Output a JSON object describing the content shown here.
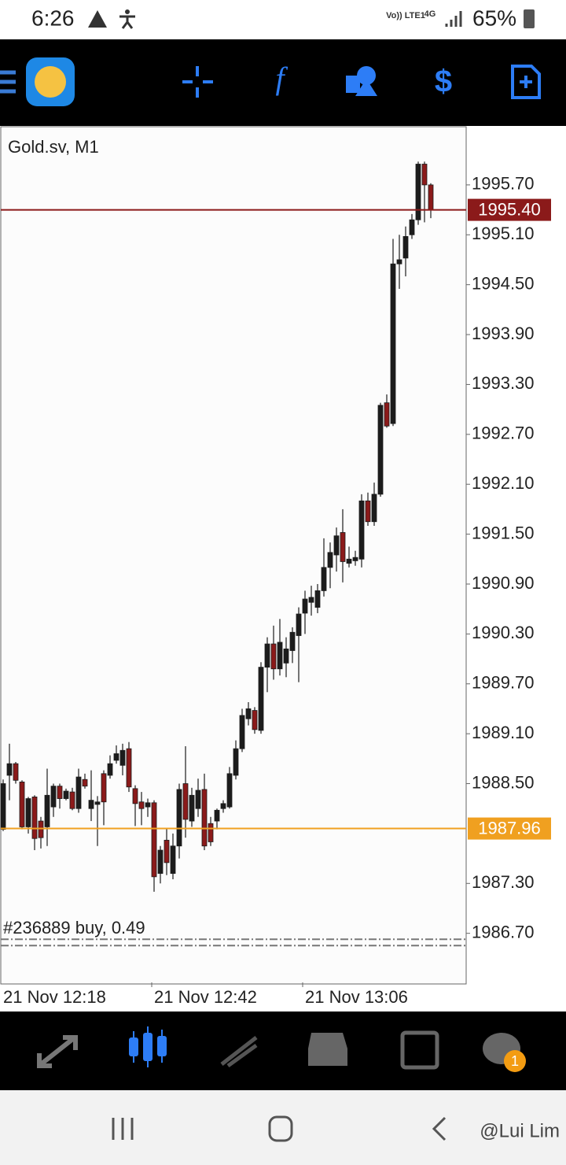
{
  "status_bar": {
    "time": "6:26",
    "network": "Vo)) LTE1",
    "signal": "4G",
    "battery": "65%"
  },
  "chart_data": {
    "type": "candlestick",
    "title": "Gold.sv, M1",
    "categories": [
      "21 Nov 12:18",
      null,
      null,
      null,
      null,
      null,
      null,
      null,
      null,
      null,
      null,
      null,
      null,
      null,
      null,
      null,
      null,
      null,
      null,
      null,
      null,
      null,
      null,
      null,
      "21 Nov 12:42",
      null,
      null,
      null,
      null,
      null,
      null,
      null,
      null,
      null,
      null,
      null,
      null,
      null,
      null,
      null,
      null,
      null,
      null,
      null,
      null,
      null,
      null,
      null,
      "21 Nov 13:06",
      null,
      null,
      null,
      null,
      null,
      null,
      null,
      null,
      null,
      null,
      null,
      null,
      null,
      null,
      null,
      null,
      null,
      null,
      null,
      null
    ],
    "open": [
      1987.95,
      1988.6,
      1988.74,
      1988.52,
      1987.98,
      1988.34,
      1988.05,
      1987.98,
      1988.22,
      1988.47,
      1988.32,
      1988.4,
      1988.2,
      1988.55,
      1988.2,
      1988.25,
      1988.62,
      1988.6,
      1988.78,
      1988.72,
      1988.92,
      1988.44,
      1988.28,
      1988.22,
      1988.27,
      1987.42,
      1987.82,
      1987.42,
      1987.75,
      1988.5,
      1988.05,
      1988.2,
      1988.43,
      1988.02,
      1988.05,
      1988.2,
      1988.22,
      1988.6,
      1988.92,
      1989.28,
      1989.38,
      1989.14,
      1989.9,
      1990.18,
      1989.88,
      1989.95,
      1990.1,
      1990.28,
      1990.55,
      1990.68,
      1990.62,
      1990.82,
      1991.1,
      1991.25,
      1991.52,
      1991.15,
      1991.18,
      1991.2,
      1991.9,
      1991.65,
      1991.98,
      1993.08,
      1992.83,
      1994.75,
      1994.82,
      1995.1,
      1995.28,
      1995.95,
      1995.7
    ],
    "high": [
      1988.55,
      1988.98,
      1988.76,
      1988.54,
      1988.34,
      1988.36,
      1988.1,
      1988.68,
      1988.5,
      1988.5,
      1988.44,
      1988.45,
      1988.68,
      1988.62,
      1988.66,
      1988.35,
      1988.66,
      1988.84,
      1988.96,
      1988.98,
      1989.0,
      1988.48,
      1988.4,
      1988.32,
      1988.3,
      1987.75,
      1987.96,
      1987.9,
      1988.5,
      1988.95,
      1988.45,
      1988.56,
      1988.62,
      1988.1,
      1988.2,
      1988.3,
      1988.7,
      1989.02,
      1989.4,
      1989.48,
      1989.42,
      1989.96,
      1990.26,
      1990.4,
      1990.48,
      1990.26,
      1990.38,
      1990.62,
      1990.82,
      1990.88,
      1990.9,
      1991.45,
      1991.4,
      1991.58,
      1991.8,
      1991.35,
      1991.3,
      1991.98,
      1992.0,
      1992.12,
      1993.08,
      1993.18,
      1995.05,
      1995.1,
      1995.2,
      1995.35,
      1995.98,
      1995.98,
      1995.72
    ],
    "low": [
      1987.93,
      1988.3,
      1988.5,
      1987.95,
      1987.9,
      1987.7,
      1987.72,
      1987.75,
      1988.1,
      1988.2,
      1988.3,
      1988.18,
      1988.15,
      1988.44,
      1988.05,
      1987.75,
      1988.0,
      1988.56,
      1988.74,
      1988.6,
      1988.4,
      1987.99,
      1988.0,
      1988.1,
      1987.2,
      1987.3,
      1987.4,
      1987.35,
      1987.6,
      1987.85,
      1987.98,
      1988.1,
      1987.7,
      1987.75,
      1987.95,
      1988.15,
      1988.2,
      1988.55,
      1988.88,
      1989.2,
      1989.1,
      1989.1,
      1989.6,
      1989.75,
      1989.8,
      1989.78,
      1989.95,
      1989.72,
      1990.3,
      1990.52,
      1990.55,
      1990.75,
      1990.85,
      1991.05,
      1990.92,
      1991.1,
      1991.12,
      1991.1,
      1991.6,
      1991.6,
      1991.95,
      1992.78,
      1992.8,
      1994.45,
      1994.6,
      1995.05,
      1995.22,
      1995.25,
      1995.3
    ],
    "close": [
      1988.5,
      1988.74,
      1988.54,
      1987.98,
      1988.32,
      1987.84,
      1987.85,
      1988.36,
      1988.47,
      1988.32,
      1988.41,
      1988.2,
      1988.58,
      1988.47,
      1988.3,
      1988.28,
      1988.28,
      1988.74,
      1988.86,
      1988.9,
      1988.46,
      1988.26,
      1988.2,
      1988.27,
      1987.38,
      1987.7,
      1987.55,
      1987.75,
      1988.43,
      1988.07,
      1988.36,
      1988.42,
      1987.75,
      1987.8,
      1988.18,
      1988.26,
      1988.62,
      1988.92,
      1989.32,
      1989.4,
      1989.15,
      1989.9,
      1990.18,
      1989.88,
      1990.2,
      1990.12,
      1990.32,
      1990.54,
      1990.72,
      1990.74,
      1990.82,
      1991.1,
      1991.28,
      1991.48,
      1991.17,
      1991.2,
      1991.22,
      1991.9,
      1991.65,
      1991.98,
      1993.05,
      1992.8,
      1994.75,
      1994.8,
      1995.08,
      1995.28,
      1995.95,
      1995.7,
      1995.4
    ],
    "up_color": "#1c1c1c",
    "down_color": "#8b1a1a",
    "ylim": [
      1986.11,
      1996.39
    ],
    "yticks": [
      {
        "value": 1995.7,
        "label": "1995.70"
      },
      {
        "value": 1995.1,
        "label": "1995.10"
      },
      {
        "value": 1994.5,
        "label": "1994.50"
      },
      {
        "value": 1993.9,
        "label": "1993.90"
      },
      {
        "value": 1993.3,
        "label": "1993.30"
      },
      {
        "value": 1992.7,
        "label": "1992.70"
      },
      {
        "value": 1992.1,
        "label": "1992.10"
      },
      {
        "value": 1991.5,
        "label": "1991.50"
      },
      {
        "value": 1990.9,
        "label": "1990.90"
      },
      {
        "value": 1990.3,
        "label": "1990.30"
      },
      {
        "value": 1989.7,
        "label": "1989.70"
      },
      {
        "value": 1989.1,
        "label": "1989.10"
      },
      {
        "value": 1988.5,
        "label": "1988.50"
      },
      {
        "value": 1987.3,
        "label": "1987.30"
      },
      {
        "value": 1986.7,
        "label": "1986.70"
      }
    ],
    "levels": [
      {
        "value": 1995.4,
        "label": "1995.40",
        "color": "#8b1a1a"
      },
      {
        "value": 1987.96,
        "label": "1987.96",
        "color": "#f0a020"
      }
    ],
    "order": {
      "label": "#236889 buy, 0.49",
      "value": 1986.59
    }
  },
  "badge": "1",
  "watermark": "@Lui Lim"
}
